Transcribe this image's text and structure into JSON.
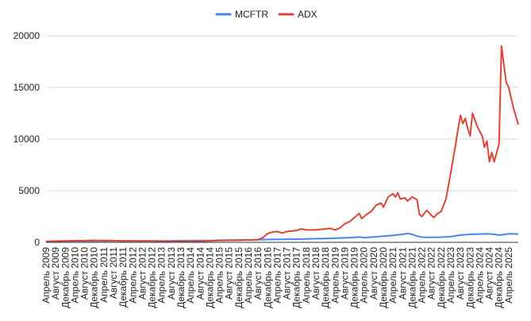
{
  "chart_data": {
    "type": "line",
    "title": "",
    "xlabel": "",
    "ylabel": "",
    "ylim": [
      0,
      20000
    ],
    "yticks": [
      0,
      5000,
      10000,
      15000,
      20000
    ],
    "ytick_labels": [
      "0",
      "5000",
      "10000",
      "15000",
      "20000"
    ],
    "x_range": [
      "2009-04",
      "2025-08"
    ],
    "grid": "horizontal",
    "legend_position": "top-center",
    "xtick_labels": [
      "Апрель 2009",
      "Август 2009",
      "Декабрь 2009",
      "Апрель 2010",
      "Август 2010",
      "Декабрь 2010",
      "Апрель 2011",
      "Август 2011",
      "Декабрь 2011",
      "Апрель 2012",
      "Август 2012",
      "Декабрь 2012",
      "Апрель 2013",
      "Август 2013",
      "Декабрь 2013",
      "Апрель 2014",
      "Август 2014",
      "Декабрь 2014",
      "Апрель 2015",
      "Август 2015",
      "Декабрь 2015",
      "Апрель 2016",
      "Август 2016",
      "Декабрь 2016",
      "Апрель 2017",
      "Август 2017",
      "Декабрь 2017",
      "Апрель 2018",
      "Август 2018",
      "Декабрь 2018",
      "Апрель 2019",
      "Август 2019",
      "Декабрь 2019",
      "Апрель 2020",
      "Август 2020",
      "Декабрь 2020",
      "Апрель 2021",
      "Август 2021",
      "Декабрь 2021",
      "Апрель 2022",
      "Август 2022",
      "Декабрь 2022",
      "Апрель 2023",
      "Август 2023",
      "Декабрь 2023",
      "Апрель 2024",
      "Август 2024",
      "Декабрь 2024",
      "Апрель 2025"
    ],
    "series": [
      {
        "name": "MCFTR",
        "color": "#4a86e8",
        "points": [
          [
            "2009-04",
            60
          ],
          [
            "2009-08",
            80
          ],
          [
            "2009-12",
            100
          ],
          [
            "2010-04",
            120
          ],
          [
            "2010-08",
            120
          ],
          [
            "2010-12",
            140
          ],
          [
            "2011-04",
            140
          ],
          [
            "2011-08",
            130
          ],
          [
            "2011-12",
            120
          ],
          [
            "2012-04",
            130
          ],
          [
            "2012-08",
            130
          ],
          [
            "2012-12",
            140
          ],
          [
            "2013-04",
            140
          ],
          [
            "2013-08",
            150
          ],
          [
            "2013-12",
            160
          ],
          [
            "2014-04",
            160
          ],
          [
            "2014-08",
            170
          ],
          [
            "2014-12",
            180
          ],
          [
            "2015-04",
            200
          ],
          [
            "2015-08",
            210
          ],
          [
            "2015-12",
            220
          ],
          [
            "2016-04",
            240
          ],
          [
            "2016-08",
            250
          ],
          [
            "2016-12",
            280
          ],
          [
            "2017-04",
            290
          ],
          [
            "2017-08",
            300
          ],
          [
            "2017-12",
            310
          ],
          [
            "2018-04",
            330
          ],
          [
            "2018-08",
            350
          ],
          [
            "2018-12",
            370
          ],
          [
            "2019-04",
            400
          ],
          [
            "2019-08",
            430
          ],
          [
            "2019-12",
            480
          ],
          [
            "2020-02",
            520
          ],
          [
            "2020-04",
            450
          ],
          [
            "2020-08",
            520
          ],
          [
            "2020-12",
            600
          ],
          [
            "2021-04",
            680
          ],
          [
            "2021-08",
            780
          ],
          [
            "2021-10",
            850
          ],
          [
            "2021-12",
            780
          ],
          [
            "2022-02",
            600
          ],
          [
            "2022-04",
            500
          ],
          [
            "2022-08",
            480
          ],
          [
            "2022-12",
            500
          ],
          [
            "2023-04",
            560
          ],
          [
            "2023-08",
            700
          ],
          [
            "2023-12",
            780
          ],
          [
            "2024-04",
            800
          ],
          [
            "2024-07",
            820
          ],
          [
            "2024-10",
            780
          ],
          [
            "2024-12",
            700
          ],
          [
            "2025-02",
            760
          ],
          [
            "2025-04",
            820
          ],
          [
            "2025-08",
            800
          ]
        ]
      },
      {
        "name": "ADX",
        "color": "#db4437",
        "points": [
          [
            "2009-04",
            100
          ],
          [
            "2009-08",
            120
          ],
          [
            "2009-12",
            140
          ],
          [
            "2010-04",
            160
          ],
          [
            "2010-08",
            160
          ],
          [
            "2010-12",
            190
          ],
          [
            "2011-04",
            170
          ],
          [
            "2011-08",
            160
          ],
          [
            "2011-12",
            150
          ],
          [
            "2012-04",
            140
          ],
          [
            "2012-08",
            140
          ],
          [
            "2012-12",
            140
          ],
          [
            "2013-04",
            110
          ],
          [
            "2013-08",
            100
          ],
          [
            "2013-12",
            100
          ],
          [
            "2014-04",
            100
          ],
          [
            "2014-08",
            110
          ],
          [
            "2014-12",
            130
          ],
          [
            "2015-04",
            170
          ],
          [
            "2015-08",
            190
          ],
          [
            "2015-12",
            200
          ],
          [
            "2016-04",
            220
          ],
          [
            "2016-08",
            260
          ],
          [
            "2016-10",
            450
          ],
          [
            "2016-12",
            850
          ],
          [
            "2017-02",
            1000
          ],
          [
            "2017-04",
            1050
          ],
          [
            "2017-06",
            900
          ],
          [
            "2017-08",
            1050
          ],
          [
            "2017-12",
            1150
          ],
          [
            "2018-02",
            1300
          ],
          [
            "2018-04",
            1200
          ],
          [
            "2018-08",
            1200
          ],
          [
            "2018-12",
            1300
          ],
          [
            "2019-02",
            1350
          ],
          [
            "2019-04",
            1200
          ],
          [
            "2019-06",
            1400
          ],
          [
            "2019-08",
            1800
          ],
          [
            "2019-10",
            2000
          ],
          [
            "2019-12",
            2400
          ],
          [
            "2020-02",
            2800
          ],
          [
            "2020-03",
            2300
          ],
          [
            "2020-05",
            2700
          ],
          [
            "2020-07",
            3000
          ],
          [
            "2020-09",
            3600
          ],
          [
            "2020-11",
            3800
          ],
          [
            "2020-12",
            3400
          ],
          [
            "2021-02",
            4400
          ],
          [
            "2021-04",
            4700
          ],
          [
            "2021-05",
            4400
          ],
          [
            "2021-06",
            4800
          ],
          [
            "2021-07",
            4200
          ],
          [
            "2021-09",
            4300
          ],
          [
            "2021-10",
            4000
          ],
          [
            "2021-12",
            4400
          ],
          [
            "2022-02",
            4100
          ],
          [
            "2022-03",
            2700
          ],
          [
            "2022-04",
            2500
          ],
          [
            "2022-06",
            3100
          ],
          [
            "2022-08",
            2600
          ],
          [
            "2022-09",
            2400
          ],
          [
            "2022-10",
            2700
          ],
          [
            "2022-12",
            3000
          ],
          [
            "2023-02",
            4200
          ],
          [
            "2023-04",
            6800
          ],
          [
            "2023-06",
            9500
          ],
          [
            "2023-07",
            11000
          ],
          [
            "2023-08",
            12300
          ],
          [
            "2023-09",
            11500
          ],
          [
            "2023-10",
            12000
          ],
          [
            "2023-11",
            11000
          ],
          [
            "2023-12",
            10300
          ],
          [
            "2024-01",
            12500
          ],
          [
            "2024-03",
            11200
          ],
          [
            "2024-05",
            10300
          ],
          [
            "2024-06",
            9200
          ],
          [
            "2024-07",
            9800
          ],
          [
            "2024-08",
            7800
          ],
          [
            "2024-09",
            8700
          ],
          [
            "2024-10",
            7800
          ],
          [
            "2024-12",
            9500
          ],
          [
            "2025-01",
            19000
          ],
          [
            "2025-02",
            17200
          ],
          [
            "2025-03",
            15500
          ],
          [
            "2025-04",
            15000
          ],
          [
            "2025-06",
            13000
          ],
          [
            "2025-08",
            11400
          ]
        ]
      }
    ]
  }
}
